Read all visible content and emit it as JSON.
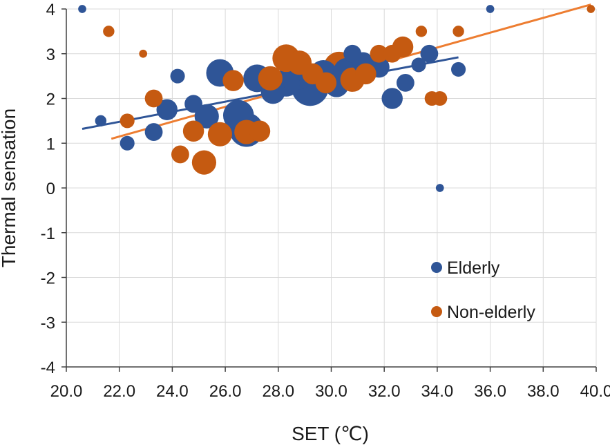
{
  "chart_data": {
    "type": "scatter",
    "title": "",
    "xlabel": "SET (℃)",
    "ylabel": "Thermal sensation",
    "xlim": [
      20.0,
      40.0
    ],
    "ylim": [
      -4,
      4
    ],
    "x_ticks": [
      "20.0",
      "22.0",
      "24.0",
      "26.0",
      "28.0",
      "30.0",
      "32.0",
      "34.0",
      "36.0",
      "38.0",
      "40.0"
    ],
    "y_ticks": [
      "-4",
      "-3",
      "-2",
      "-1",
      "0",
      "1",
      "2",
      "3",
      "4"
    ],
    "grid": true,
    "legend_position": "bottom-right",
    "series": [
      {
        "name": "Elderly",
        "color": "#2f5597",
        "trendline": {
          "x": [
            20.6,
            34.8
          ],
          "y": [
            1.32,
            2.92
          ]
        },
        "points": [
          {
            "x": 20.6,
            "y": 4.0,
            "size": 1
          },
          {
            "x": 21.3,
            "y": 1.5,
            "size": 2
          },
          {
            "x": 22.3,
            "y": 1.0,
            "size": 3
          },
          {
            "x": 23.3,
            "y": 1.25,
            "size": 4
          },
          {
            "x": 23.8,
            "y": 1.75,
            "size": 5
          },
          {
            "x": 24.2,
            "y": 2.5,
            "size": 3
          },
          {
            "x": 24.8,
            "y": 1.88,
            "size": 4
          },
          {
            "x": 25.3,
            "y": 1.6,
            "size": 6
          },
          {
            "x": 25.8,
            "y": 2.57,
            "size": 7
          },
          {
            "x": 26.5,
            "y": 1.62,
            "size": 8
          },
          {
            "x": 26.8,
            "y": 1.3,
            "size": 9
          },
          {
            "x": 27.2,
            "y": 2.45,
            "size": 7
          },
          {
            "x": 27.8,
            "y": 2.15,
            "size": 6
          },
          {
            "x": 28.3,
            "y": 2.35,
            "size": 7
          },
          {
            "x": 28.8,
            "y": 2.55,
            "size": 8
          },
          {
            "x": 29.2,
            "y": 2.25,
            "size": 10
          },
          {
            "x": 29.7,
            "y": 2.55,
            "size": 7
          },
          {
            "x": 30.2,
            "y": 2.3,
            "size": 6
          },
          {
            "x": 30.6,
            "y": 2.6,
            "size": 7
          },
          {
            "x": 30.8,
            "y": 3.0,
            "size": 4
          },
          {
            "x": 31.2,
            "y": 2.8,
            "size": 5
          },
          {
            "x": 31.8,
            "y": 2.7,
            "size": 5
          },
          {
            "x": 32.3,
            "y": 2.0,
            "size": 5
          },
          {
            "x": 32.8,
            "y": 2.35,
            "size": 4
          },
          {
            "x": 33.3,
            "y": 2.75,
            "size": 3
          },
          {
            "x": 33.7,
            "y": 3.0,
            "size": 4
          },
          {
            "x": 34.1,
            "y": 0.0,
            "size": 1
          },
          {
            "x": 34.8,
            "y": 2.65,
            "size": 3
          },
          {
            "x": 36.0,
            "y": 4.0,
            "size": 1
          }
        ]
      },
      {
        "name": "Non-elderly",
        "color": "#c55a11",
        "trendline": {
          "x": [
            21.7,
            39.8
          ],
          "y": [
            1.1,
            4.1
          ]
        },
        "points": [
          {
            "x": 21.6,
            "y": 3.5,
            "size": 2
          },
          {
            "x": 22.3,
            "y": 1.5,
            "size": 3
          },
          {
            "x": 22.9,
            "y": 3.0,
            "size": 1
          },
          {
            "x": 23.3,
            "y": 2.0,
            "size": 4
          },
          {
            "x": 24.3,
            "y": 0.75,
            "size": 4
          },
          {
            "x": 24.8,
            "y": 1.27,
            "size": 5
          },
          {
            "x": 25.2,
            "y": 0.57,
            "size": 6
          },
          {
            "x": 25.8,
            "y": 1.2,
            "size": 6
          },
          {
            "x": 26.3,
            "y": 2.4,
            "size": 5
          },
          {
            "x": 26.8,
            "y": 1.25,
            "size": 6
          },
          {
            "x": 27.3,
            "y": 1.27,
            "size": 5
          },
          {
            "x": 27.7,
            "y": 2.45,
            "size": 6
          },
          {
            "x": 28.3,
            "y": 2.9,
            "size": 7
          },
          {
            "x": 28.8,
            "y": 2.8,
            "size": 6
          },
          {
            "x": 29.3,
            "y": 2.55,
            "size": 5
          },
          {
            "x": 29.8,
            "y": 2.35,
            "size": 5
          },
          {
            "x": 30.3,
            "y": 2.7,
            "size": 8
          },
          {
            "x": 30.8,
            "y": 2.42,
            "size": 6
          },
          {
            "x": 31.3,
            "y": 2.55,
            "size": 5
          },
          {
            "x": 31.8,
            "y": 3.0,
            "size": 4
          },
          {
            "x": 32.3,
            "y": 3.0,
            "size": 4
          },
          {
            "x": 32.7,
            "y": 3.15,
            "size": 5
          },
          {
            "x": 33.4,
            "y": 3.5,
            "size": 2
          },
          {
            "x": 33.8,
            "y": 2.0,
            "size": 3
          },
          {
            "x": 34.1,
            "y": 2.0,
            "size": 3
          },
          {
            "x": 34.8,
            "y": 3.5,
            "size": 2
          },
          {
            "x": 39.8,
            "y": 4.0,
            "size": 1
          }
        ]
      }
    ]
  }
}
